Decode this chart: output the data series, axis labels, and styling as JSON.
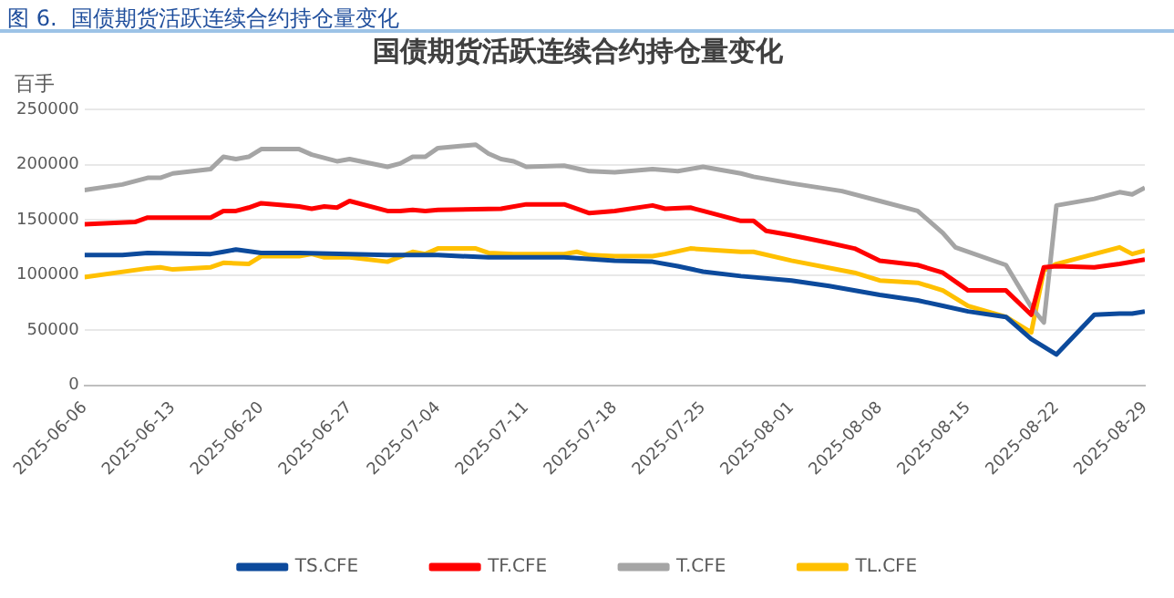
{
  "chart_data": {
    "type": "line",
    "title": "国债期货活跃连续合约持仓量变化",
    "ylabel": "百手",
    "annotations": [
      "图 6.  国债期货活跃连续合约持仓量变化"
    ],
    "xlim": [
      "2025-06-06",
      "2025-08-29"
    ],
    "xticks": [
      "2025-06-06",
      "2025-06-13",
      "2025-06-20",
      "2025-06-27",
      "2025-07-04",
      "2025-07-11",
      "2025-07-18",
      "2025-07-25",
      "2025-08-01",
      "2025-08-08",
      "2025-08-15",
      "2025-08-22",
      "2025-08-29"
    ],
    "ylim": [
      0,
      250000
    ],
    "yticks": [
      0,
      50000,
      100000,
      150000,
      200000,
      250000
    ],
    "grid": "y",
    "legend": "bottom",
    "marker": "none",
    "line_style": "solid",
    "series": [
      {
        "name": "TS.CFE",
        "color": "#0c4a9c",
        "x": [
          "2025-06-06",
          "2025-06-09",
          "2025-06-11",
          "2025-06-16",
          "2025-06-17",
          "2025-06-18",
          "2025-06-20",
          "2025-06-23",
          "2025-06-27",
          "2025-06-30",
          "2025-07-04",
          "2025-07-08",
          "2025-07-10",
          "2025-07-14",
          "2025-07-18",
          "2025-07-21",
          "2025-07-23",
          "2025-07-25",
          "2025-07-28",
          "2025-08-01",
          "2025-08-04",
          "2025-08-08",
          "2025-08-11",
          "2025-08-13",
          "2025-08-15",
          "2025-08-18",
          "2025-08-20",
          "2025-08-22",
          "2025-08-25",
          "2025-08-27",
          "2025-08-28",
          "2025-08-29"
        ],
        "values": [
          118000,
          118000,
          120000,
          119000,
          121000,
          123000,
          120000,
          120000,
          119000,
          118000,
          118000,
          116000,
          116000,
          116000,
          113000,
          112000,
          108000,
          103000,
          99000,
          95000,
          90000,
          82000,
          77000,
          72000,
          67000,
          62000,
          42000,
          28000,
          64000,
          65000,
          65000,
          67000
        ]
      },
      {
        "name": "TF.CFE",
        "color": "#ff0000",
        "x": [
          "2025-06-06",
          "2025-06-10",
          "2025-06-11",
          "2025-06-16",
          "2025-06-17",
          "2025-06-18",
          "2025-06-19",
          "2025-06-20",
          "2025-06-23",
          "2025-06-24",
          "2025-06-25",
          "2025-06-26",
          "2025-06-27",
          "2025-06-30",
          "2025-07-01",
          "2025-07-02",
          "2025-07-03",
          "2025-07-04",
          "2025-07-09",
          "2025-07-11",
          "2025-07-14",
          "2025-07-16",
          "2025-07-18",
          "2025-07-21",
          "2025-07-22",
          "2025-07-24",
          "2025-07-25",
          "2025-07-28",
          "2025-07-29",
          "2025-07-30",
          "2025-08-01",
          "2025-08-04",
          "2025-08-06",
          "2025-08-08",
          "2025-08-11",
          "2025-08-13",
          "2025-08-15",
          "2025-08-18",
          "2025-08-20",
          "2025-08-21",
          "2025-08-22",
          "2025-08-25",
          "2025-08-27",
          "2025-08-29"
        ],
        "values": [
          146000,
          148000,
          152000,
          152000,
          158000,
          158000,
          161000,
          165000,
          162000,
          160000,
          162000,
          161000,
          167000,
          158000,
          158000,
          159000,
          158000,
          159000,
          160000,
          164000,
          164000,
          156000,
          158000,
          163000,
          160000,
          161000,
          158000,
          149000,
          149000,
          140000,
          136000,
          129000,
          124000,
          113000,
          109000,
          102000,
          86000,
          86000,
          64000,
          107000,
          108000,
          107000,
          110000,
          114000
        ]
      },
      {
        "name": "T.CFE",
        "color": "#a5a5a5",
        "x": [
          "2025-06-06",
          "2025-06-09",
          "2025-06-11",
          "2025-06-12",
          "2025-06-13",
          "2025-06-16",
          "2025-06-17",
          "2025-06-18",
          "2025-06-19",
          "2025-06-20",
          "2025-06-23",
          "2025-06-24",
          "2025-06-26",
          "2025-06-27",
          "2025-06-30",
          "2025-07-01",
          "2025-07-02",
          "2025-07-03",
          "2025-07-04",
          "2025-07-07",
          "2025-07-08",
          "2025-07-09",
          "2025-07-10",
          "2025-07-11",
          "2025-07-14",
          "2025-07-16",
          "2025-07-18",
          "2025-07-21",
          "2025-07-23",
          "2025-07-25",
          "2025-07-28",
          "2025-07-29",
          "2025-08-01",
          "2025-08-05",
          "2025-08-08",
          "2025-08-11",
          "2025-08-13",
          "2025-08-14",
          "2025-08-18",
          "2025-08-20",
          "2025-08-21",
          "2025-08-22",
          "2025-08-25",
          "2025-08-27",
          "2025-08-28",
          "2025-08-29"
        ],
        "values": [
          177000,
          182000,
          188000,
          188000,
          192000,
          196000,
          207000,
          205000,
          207000,
          214000,
          214000,
          209000,
          203000,
          205000,
          198000,
          201000,
          207000,
          207000,
          215000,
          218000,
          210000,
          205000,
          203000,
          198000,
          199000,
          194000,
          193000,
          196000,
          194000,
          198000,
          192000,
          189000,
          183000,
          176000,
          167000,
          158000,
          138000,
          125000,
          109000,
          71000,
          57000,
          163000,
          169000,
          175000,
          173000,
          179000
        ]
      },
      {
        "name": "TL.CFE",
        "color": "#ffc000",
        "x": [
          "2025-06-06",
          "2025-06-11",
          "2025-06-12",
          "2025-06-13",
          "2025-06-16",
          "2025-06-17",
          "2025-06-19",
          "2025-06-20",
          "2025-06-23",
          "2025-06-24",
          "2025-06-25",
          "2025-06-27",
          "2025-06-30",
          "2025-07-02",
          "2025-07-03",
          "2025-07-04",
          "2025-07-07",
          "2025-07-08",
          "2025-07-10",
          "2025-07-14",
          "2025-07-15",
          "2025-07-16",
          "2025-07-18",
          "2025-07-21",
          "2025-07-22",
          "2025-07-24",
          "2025-07-28",
          "2025-07-29",
          "2025-08-01",
          "2025-08-06",
          "2025-08-08",
          "2025-08-11",
          "2025-08-13",
          "2025-08-15",
          "2025-08-18",
          "2025-08-20",
          "2025-08-21",
          "2025-08-22",
          "2025-08-25",
          "2025-08-27",
          "2025-08-28",
          "2025-08-29"
        ],
        "values": [
          98000,
          106000,
          107000,
          105000,
          107000,
          111000,
          110000,
          117000,
          117000,
          119000,
          116000,
          116000,
          112000,
          121000,
          119000,
          124000,
          124000,
          120000,
          119000,
          119000,
          121000,
          118000,
          117000,
          117000,
          119000,
          124000,
          121000,
          121000,
          113000,
          102000,
          95000,
          93000,
          86000,
          72000,
          62000,
          48000,
          104000,
          110000,
          119000,
          125000,
          119000,
          122000
        ]
      }
    ]
  }
}
